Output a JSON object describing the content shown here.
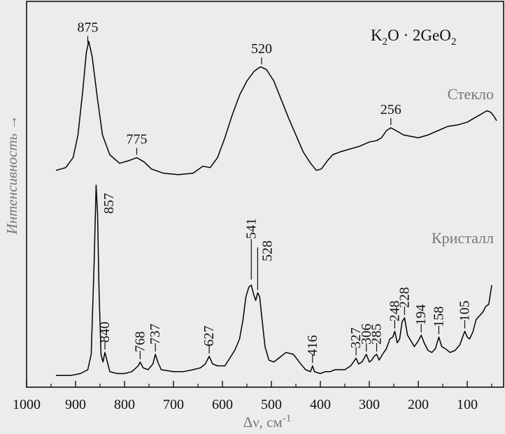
{
  "chart_data": {
    "type": "line",
    "title": "K₂O · 2GeO₂",
    "title_main": "K",
    "title_sub1": "2",
    "title_mid": "O · 2GeO",
    "title_sub2": "2",
    "xlabel": "Δν, см",
    "xlabel_sup": "-1",
    "ylabel": "Интенсивность →",
    "xlim": [
      1000,
      40
    ],
    "x_reversed": true,
    "x_ticks": [
      1000,
      900,
      800,
      700,
      600,
      500,
      400,
      300,
      200,
      100
    ],
    "grid": false,
    "series": [
      {
        "name": "Стекло",
        "color": "#000000",
        "points": [
          [
            940,
            5
          ],
          [
            920,
            7
          ],
          [
            905,
            14
          ],
          [
            895,
            30
          ],
          [
            885,
            62
          ],
          [
            878,
            88
          ],
          [
            873,
            96
          ],
          [
            866,
            85
          ],
          [
            855,
            55
          ],
          [
            845,
            30
          ],
          [
            830,
            16
          ],
          [
            810,
            10
          ],
          [
            790,
            12
          ],
          [
            775,
            14
          ],
          [
            760,
            11
          ],
          [
            745,
            6
          ],
          [
            720,
            3
          ],
          [
            690,
            2
          ],
          [
            660,
            3
          ],
          [
            640,
            8
          ],
          [
            625,
            7
          ],
          [
            610,
            14
          ],
          [
            595,
            28
          ],
          [
            580,
            44
          ],
          [
            565,
            58
          ],
          [
            550,
            68
          ],
          [
            535,
            75
          ],
          [
            522,
            78
          ],
          [
            510,
            76
          ],
          [
            495,
            68
          ],
          [
            480,
            55
          ],
          [
            465,
            42
          ],
          [
            450,
            30
          ],
          [
            435,
            18
          ],
          [
            420,
            10
          ],
          [
            408,
            5
          ],
          [
            398,
            6
          ],
          [
            385,
            12
          ],
          [
            375,
            16
          ],
          [
            360,
            18
          ],
          [
            340,
            20
          ],
          [
            320,
            22
          ],
          [
            300,
            25
          ],
          [
            285,
            26
          ],
          [
            275,
            28
          ],
          [
            265,
            33
          ],
          [
            256,
            35
          ],
          [
            245,
            33
          ],
          [
            230,
            30
          ],
          [
            215,
            29
          ],
          [
            200,
            28
          ],
          [
            180,
            30
          ],
          [
            160,
            33
          ],
          [
            140,
            36
          ],
          [
            120,
            37
          ],
          [
            100,
            39
          ],
          [
            90,
            41
          ],
          [
            80,
            43
          ],
          [
            70,
            45
          ],
          [
            60,
            47
          ],
          [
            52,
            46
          ],
          [
            45,
            43
          ],
          [
            40,
            40
          ]
        ]
      },
      {
        "name": "Кристалл",
        "color": "#000000",
        "points": [
          [
            940,
            1
          ],
          [
            910,
            1
          ],
          [
            890,
            2
          ],
          [
            875,
            4
          ],
          [
            868,
            12
          ],
          [
            862,
            60
          ],
          [
            858,
            100
          ],
          [
            855,
            85
          ],
          [
            852,
            45
          ],
          [
            848,
            12
          ],
          [
            844,
            8
          ],
          [
            840,
            13
          ],
          [
            836,
            9
          ],
          [
            830,
            3
          ],
          [
            815,
            2
          ],
          [
            800,
            2
          ],
          [
            785,
            3
          ],
          [
            772,
            6
          ],
          [
            768,
            8
          ],
          [
            762,
            5
          ],
          [
            752,
            4
          ],
          [
            742,
            7
          ],
          [
            737,
            12
          ],
          [
            732,
            8
          ],
          [
            725,
            4
          ],
          [
            700,
            3
          ],
          [
            680,
            3
          ],
          [
            660,
            4
          ],
          [
            645,
            5
          ],
          [
            635,
            7
          ],
          [
            627,
            11
          ],
          [
            620,
            7
          ],
          [
            610,
            6
          ],
          [
            595,
            6
          ],
          [
            585,
            10
          ],
          [
            575,
            14
          ],
          [
            565,
            20
          ],
          [
            558,
            30
          ],
          [
            552,
            42
          ],
          [
            546,
            47
          ],
          [
            541,
            48
          ],
          [
            536,
            43
          ],
          [
            532,
            40
          ],
          [
            528,
            44
          ],
          [
            524,
            42
          ],
          [
            519,
            30
          ],
          [
            513,
            16
          ],
          [
            505,
            9
          ],
          [
            495,
            8
          ],
          [
            485,
            10
          ],
          [
            470,
            13
          ],
          [
            455,
            12
          ],
          [
            440,
            7
          ],
          [
            430,
            4
          ],
          [
            420,
            3
          ],
          [
            416,
            6
          ],
          [
            412,
            3
          ],
          [
            400,
            2
          ],
          [
            390,
            3
          ],
          [
            380,
            3
          ],
          [
            370,
            4
          ],
          [
            360,
            4
          ],
          [
            350,
            4
          ],
          [
            338,
            6
          ],
          [
            327,
            10
          ],
          [
            322,
            7
          ],
          [
            315,
            8
          ],
          [
            306,
            12
          ],
          [
            300,
            8
          ],
          [
            295,
            9
          ],
          [
            290,
            11
          ],
          [
            285,
            12
          ],
          [
            280,
            9
          ],
          [
            273,
            12
          ],
          [
            265,
            15
          ],
          [
            258,
            20
          ],
          [
            252,
            21
          ],
          [
            248,
            24
          ],
          [
            243,
            18
          ],
          [
            238,
            20
          ],
          [
            233,
            29
          ],
          [
            228,
            31
          ],
          [
            222,
            22
          ],
          [
            215,
            19
          ],
          [
            208,
            16
          ],
          [
            200,
            19
          ],
          [
            194,
            22
          ],
          [
            188,
            18
          ],
          [
            180,
            14
          ],
          [
            172,
            13
          ],
          [
            165,
            15
          ],
          [
            158,
            21
          ],
          [
            152,
            16
          ],
          [
            145,
            15
          ],
          [
            135,
            13
          ],
          [
            125,
            14
          ],
          [
            115,
            17
          ],
          [
            108,
            22
          ],
          [
            105,
            24
          ],
          [
            100,
            21
          ],
          [
            95,
            20
          ],
          [
            88,
            24
          ],
          [
            82,
            30
          ],
          [
            75,
            32
          ],
          [
            68,
            34
          ],
          [
            62,
            37
          ],
          [
            56,
            38
          ],
          [
            50,
            48
          ]
        ]
      }
    ],
    "glass_label": "Стекло",
    "crystal_label": "Кристалл",
    "glass_peaks": [
      {
        "x": 875,
        "label": "875"
      },
      {
        "x": 775,
        "label": "775"
      },
      {
        "x": 520,
        "label": "520"
      },
      {
        "x": 256,
        "label": "256"
      }
    ],
    "crystal_peaks": [
      {
        "x": 857,
        "label": "857"
      },
      {
        "x": 840,
        "label": "840"
      },
      {
        "x": 768,
        "label": "768"
      },
      {
        "x": 737,
        "label": "737"
      },
      {
        "x": 627,
        "label": "627"
      },
      {
        "x": 541,
        "label": "541"
      },
      {
        "x": 528,
        "label": "528"
      },
      {
        "x": 416,
        "label": "416"
      },
      {
        "x": 327,
        "label": "327"
      },
      {
        "x": 306,
        "label": "306"
      },
      {
        "x": 285,
        "label": "285"
      },
      {
        "x": 248,
        "label": "248"
      },
      {
        "x": 228,
        "label": "228"
      },
      {
        "x": 194,
        "label": "194"
      },
      {
        "x": 158,
        "label": "158"
      },
      {
        "x": 105,
        "label": "105"
      }
    ]
  }
}
